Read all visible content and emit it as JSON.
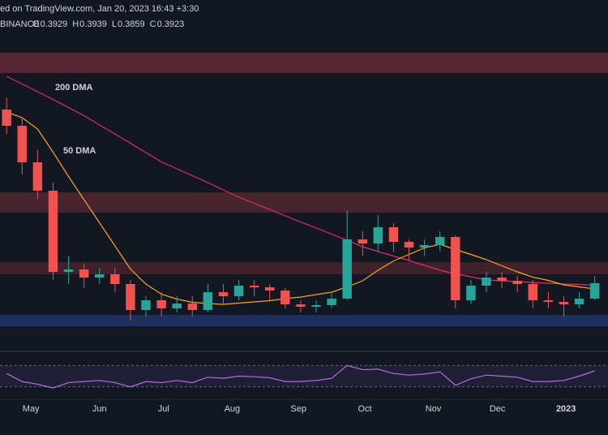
{
  "header": {
    "published": "ed on TradingView.com, Jan 20, 2023 16:43 +3:30",
    "exchange": "BINANCE",
    "ohlc": [
      {
        "key": "O",
        "value": 0.3929
      },
      {
        "key": "H",
        "value": 0.3939
      },
      {
        "key": "L",
        "value": 0.3859
      },
      {
        "key": "C",
        "value": 0.3923
      }
    ]
  },
  "chart_data": {
    "type": "candlestick",
    "x": [
      3,
      10,
      17,
      24,
      31,
      38,
      45,
      52,
      59,
      66,
      73,
      80,
      87,
      94,
      101,
      108,
      115,
      122,
      129,
      136,
      143,
      150,
      157,
      164,
      171,
      178,
      185,
      192,
      199,
      206,
      213,
      220,
      227,
      234,
      241,
      248,
      255,
      262,
      269
    ],
    "open": [
      0.82,
      0.78,
      0.69,
      0.62,
      0.42,
      0.426,
      0.406,
      0.414,
      0.39,
      0.326,
      0.35,
      0.33,
      0.342,
      0.326,
      0.37,
      0.36,
      0.386,
      0.382,
      0.374,
      0.34,
      0.334,
      0.338,
      0.354,
      0.5,
      0.49,
      0.53,
      0.494,
      0.48,
      0.486,
      0.506,
      0.35,
      0.386,
      0.406,
      0.398,
      0.39,
      0.35,
      0.346,
      0.34,
      0.354
    ],
    "high": [
      0.85,
      0.8,
      0.72,
      0.64,
      0.46,
      0.44,
      0.43,
      0.43,
      0.4,
      0.36,
      0.37,
      0.36,
      0.36,
      0.39,
      0.39,
      0.4,
      0.4,
      0.39,
      0.38,
      0.35,
      0.35,
      0.37,
      0.57,
      0.52,
      0.56,
      0.54,
      0.5,
      0.5,
      0.52,
      0.51,
      0.4,
      0.42,
      0.42,
      0.41,
      0.4,
      0.37,
      0.36,
      0.37,
      0.41
    ],
    "low": [
      0.76,
      0.66,
      0.6,
      0.4,
      0.39,
      0.38,
      0.39,
      0.37,
      0.3,
      0.31,
      0.31,
      0.32,
      0.31,
      0.32,
      0.34,
      0.35,
      0.36,
      0.35,
      0.33,
      0.32,
      0.32,
      0.33,
      0.35,
      0.46,
      0.47,
      0.47,
      0.45,
      0.46,
      0.47,
      0.33,
      0.34,
      0.37,
      0.38,
      0.37,
      0.33,
      0.33,
      0.31,
      0.33,
      0.35
    ],
    "close": [
      0.78,
      0.69,
      0.62,
      0.42,
      0.426,
      0.406,
      0.414,
      0.39,
      0.326,
      0.35,
      0.33,
      0.342,
      0.326,
      0.37,
      0.36,
      0.386,
      0.382,
      0.374,
      0.34,
      0.334,
      0.338,
      0.354,
      0.5,
      0.49,
      0.53,
      0.494,
      0.48,
      0.486,
      0.506,
      0.35,
      0.386,
      0.406,
      0.398,
      0.39,
      0.35,
      0.346,
      0.34,
      0.354,
      0.3923
    ],
    "up_color": "#26a69a",
    "down_color": "#ef5350",
    "series": [
      {
        "name": "200 DMA",
        "color": "#e0306e",
        "values": [
          0.902,
          0.883,
          0.864,
          0.845,
          0.825,
          0.805,
          0.782,
          0.76,
          0.737,
          0.714,
          0.691,
          0.674,
          0.657,
          0.64,
          0.622,
          0.604,
          0.589,
          0.574,
          0.558,
          0.543,
          0.528,
          0.513,
          0.498,
          0.482,
          0.47,
          0.459,
          0.448,
          0.436,
          0.424,
          0.415,
          0.408,
          0.4,
          0.398,
          0.396,
          0.394,
          0.392,
          0.39,
          0.389,
          0.387
        ]
      },
      {
        "name": "50 DMA",
        "color": "#f5a524",
        "values": [
          0.814,
          0.8,
          0.772,
          0.715,
          0.655,
          0.598,
          0.541,
          0.484,
          0.427,
          0.39,
          0.365,
          0.353,
          0.345,
          0.342,
          0.34,
          0.343,
          0.346,
          0.349,
          0.354,
          0.358,
          0.364,
          0.37,
          0.383,
          0.398,
          0.424,
          0.447,
          0.463,
          0.479,
          0.488,
          0.475,
          0.463,
          0.45,
          0.435,
          0.42,
          0.407,
          0.399,
          0.388,
          0.383,
          0.378
        ]
      }
    ],
    "zones": [
      {
        "low": 0.91,
        "high": 0.96,
        "color": "#6b2a36"
      },
      {
        "low": 0.566,
        "high": 0.616,
        "color": "#5a2833"
      },
      {
        "low": 0.414,
        "high": 0.444,
        "color": "#4f2630"
      },
      {
        "low": 0.286,
        "high": 0.314,
        "color": "#233a73"
      }
    ],
    "ylim": [
      0.23,
      1.09
    ],
    "xlim": [
      0,
      275
    ],
    "xticks": [
      {
        "value": 14,
        "label": "May"
      },
      {
        "value": 45,
        "label": "Jun"
      },
      {
        "value": 74,
        "label": "Jul"
      },
      {
        "value": 105,
        "label": "Aug"
      },
      {
        "value": 135,
        "label": "Sep"
      },
      {
        "value": 165,
        "label": "Oct"
      },
      {
        "value": 196,
        "label": "Nov"
      },
      {
        "value": 225,
        "label": "Dec"
      },
      {
        "value": 256,
        "label": "2023"
      }
    ],
    "rsi": {
      "color": "#b46ee0",
      "values": [
        55,
        40,
        35,
        28,
        38,
        40,
        42,
        38,
        30,
        40,
        38,
        42,
        38,
        48,
        46,
        50,
        49,
        47,
        40,
        40,
        42,
        46,
        70,
        62,
        63,
        55,
        52,
        54,
        58,
        33,
        45,
        52,
        50,
        48,
        40,
        40,
        42,
        50,
        60
      ],
      "ylim": [
        10,
        90
      ],
      "band": [
        30,
        70
      ]
    }
  }
}
